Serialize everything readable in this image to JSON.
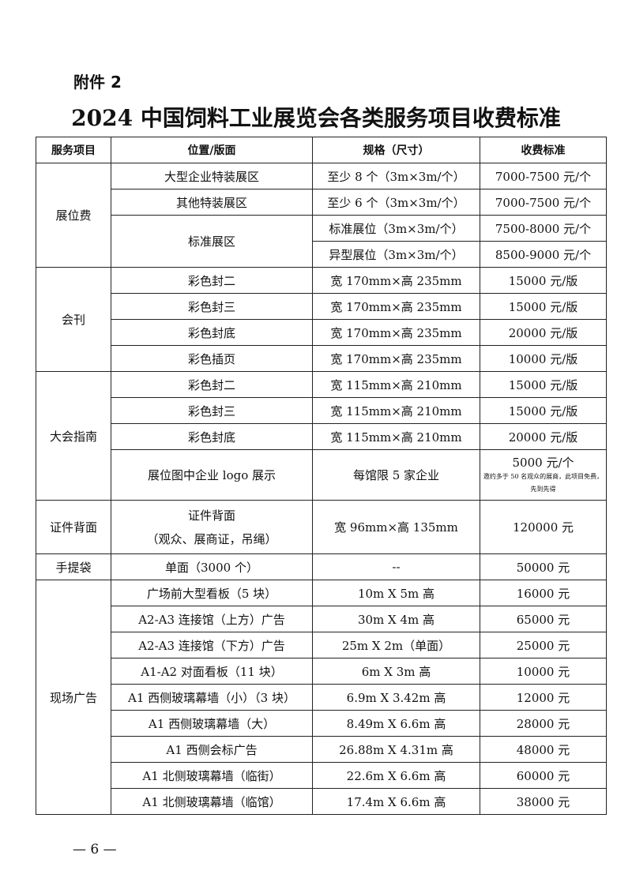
{
  "annex": "附件 2",
  "title": "2024 中国饲料工业展览会各类服务项目收费标准",
  "headers": [
    "服务项目",
    "位置/版面",
    "规格（尺寸）",
    "收费标准"
  ],
  "groups": [
    {
      "name": "展位费",
      "rows": [
        {
          "position": "大型企业特装展区",
          "spec": "至少 8 个（3m×3m/个）",
          "fee": "7000-7500 元/个"
        },
        {
          "position": "其他特装展区",
          "spec": "至少 6 个（3m×3m/个）",
          "fee": "7000-7500 元/个"
        },
        {
          "position": "标准展区",
          "spec": "标准展位（3m×3m/个）",
          "fee": "7500-8000 元/个"
        },
        {
          "spec": "异型展位（3m×3m/个）",
          "fee": "8500-9000 元/个"
        }
      ]
    },
    {
      "name": "会刊",
      "rows": [
        {
          "position": "彩色封二",
          "spec": "宽 170mm×高 235mm",
          "fee": "15000 元/版"
        },
        {
          "position": "彩色封三",
          "spec": "宽 170mm×高 235mm",
          "fee": "15000 元/版"
        },
        {
          "position": "彩色封底",
          "spec": "宽 170mm×高 235mm",
          "fee": "20000 元/版"
        },
        {
          "position": "彩色插页",
          "spec": "宽 170mm×高 235mm",
          "fee": "10000 元/版"
        }
      ]
    },
    {
      "name": "大会指南",
      "rows": [
        {
          "position": "彩色封二",
          "spec": "宽 115mm×高 210mm",
          "fee": "15000 元/版"
        },
        {
          "position": "彩色封三",
          "spec": "宽 115mm×高 210mm",
          "fee": "15000 元/版"
        },
        {
          "position": "彩色封底",
          "spec": "宽 115mm×高 210mm",
          "fee": "20000 元/版"
        },
        {
          "position": "展位图中企业 logo 展示",
          "spec": "每馆限 5 家企业",
          "fee": "5000 元/个",
          "note": "邀约多于 50 名观众的展商，此项目免费，先到先得"
        }
      ]
    },
    {
      "name": "证件背面",
      "rows": [
        {
          "position": "证件背面",
          "position2": "（观众、展商证，吊绳）",
          "spec": "宽 96mm×高 135mm",
          "fee": "120000 元"
        }
      ]
    },
    {
      "name": "手提袋",
      "rows": [
        {
          "position": "单面（3000 个）",
          "spec": "--",
          "fee": "50000 元"
        }
      ]
    },
    {
      "name": "现场广告",
      "rows": [
        {
          "position": "广场前大型看板（5 块）",
          "spec": "10m X 5m 高",
          "fee": "16000 元"
        },
        {
          "position": "A2-A3 连接馆（上方）广告",
          "spec": "30m X 4m 高",
          "fee": "65000 元"
        },
        {
          "position": "A2-A3 连接馆（下方）广告",
          "spec": "25m X 2m（单面）",
          "fee": "25000 元"
        },
        {
          "position": "A1-A2 对面看板（11 块）",
          "spec": "6m X 3m 高",
          "fee": "10000 元"
        },
        {
          "position": "A1 西侧玻璃幕墙（小）（3 块）",
          "spec": "6.9m X 3.42m 高",
          "fee": "12000 元"
        },
        {
          "position": "A1 西侧玻璃幕墙（大）",
          "spec": "8.49m X 6.6m 高",
          "fee": "28000 元"
        },
        {
          "position": "A1 西侧会标广告",
          "spec": "26.88m X 4.31m 高",
          "fee": "48000 元"
        },
        {
          "position": "A1 北侧玻璃幕墙（临街）",
          "spec": "22.6m X 6.6m 高",
          "fee": "60000 元"
        },
        {
          "position": "A1 北侧玻璃幕墙（临馆）",
          "spec": "17.4m X 6.6m 高",
          "fee": "38000 元"
        }
      ]
    }
  ],
  "page_number": "— 6 —"
}
